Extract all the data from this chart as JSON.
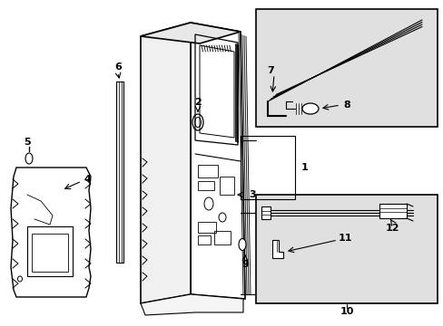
{
  "bg_color": "#ffffff",
  "inset_bg": "#e0e0e0",
  "line_color": "#000000",
  "figsize": [
    4.89,
    3.6
  ],
  "dpi": 100,
  "xlim": [
    0,
    489
  ],
  "ylim": [
    0,
    360
  ]
}
